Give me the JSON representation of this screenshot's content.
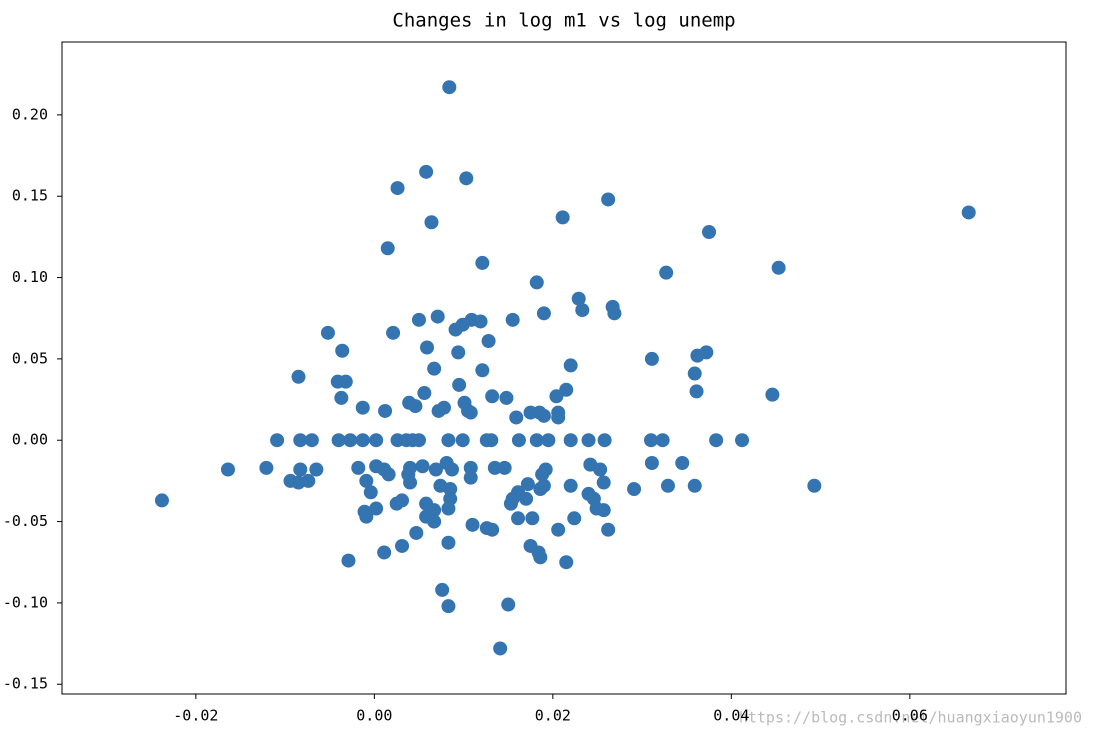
{
  "chart_data": {
    "type": "scatter",
    "title": "Changes in log m1 vs log unemp",
    "color": "#3474b0",
    "watermark": "https://blog.csdn.net/huangxiaoyun1900",
    "xlim": [
      -0.035,
      0.0775
    ],
    "ylim": [
      -0.156,
      0.2448
    ],
    "xticks": [
      {
        "value": -0.02,
        "label": "-0.02"
      },
      {
        "value": 0,
        "label": "0.00"
      },
      {
        "value": 0.02,
        "label": "0.02"
      },
      {
        "value": 0.04,
        "label": "0.04"
      },
      {
        "value": 0.06,
        "label": "0.06"
      }
    ],
    "yticks": [
      {
        "value": -0.15,
        "label": "-0.15"
      },
      {
        "value": -0.1,
        "label": "-0.10"
      },
      {
        "value": -0.05,
        "label": "-0.05"
      },
      {
        "value": 0,
        "label": "0.00"
      },
      {
        "value": 0.05,
        "label": "0.05"
      },
      {
        "value": 0.1,
        "label": "0.10"
      },
      {
        "value": 0.15,
        "label": "0.15"
      },
      {
        "value": 0.2,
        "label": "0.20"
      }
    ],
    "x": [
      0.0084,
      0.0026,
      0.0058,
      0.0103,
      0.0064,
      0.0015,
      0.0121,
      0.0262,
      0.0211,
      0.0375,
      0.0666,
      0.0453,
      0.0327,
      0.0182,
      0.0229,
      0.0233,
      0.0267,
      0.0269,
      0.019,
      0.0155,
      0.005,
      0.0071,
      0.0109,
      0.0119,
      0.0099,
      0.0091,
      -0.0052,
      0.0021,
      0.0128,
      0.0059,
      0.0094,
      -0.0036,
      0.0311,
      0.0372,
      0.0362,
      0.022,
      0.0067,
      0.0121,
      0.0359,
      -0.0085,
      -0.0041,
      -0.0032,
      0.0095,
      0.0215,
      0.0056,
      0.0361,
      0.0446,
      0.0204,
      0.0132,
      0.0148,
      -0.0037,
      0.0039,
      0.0046,
      0.0101,
      -0.0013,
      0.0012,
      0.0072,
      0.0078,
      0.0105,
      0.0108,
      0.0175,
      0.0159,
      0.0185,
      0.019,
      0.0206,
      0.0206,
      -0.0109,
      -0.0083,
      -0.007,
      -0.004,
      -0.0027,
      -0.0013,
      0.0002,
      0.0026,
      0.0036,
      0.0043,
      0.005,
      0.0083,
      0.0099,
      0.0126,
      0.0131,
      0.0162,
      0.0182,
      0.0195,
      0.022,
      0.024,
      0.0258,
      0.031,
      0.0323,
      0.0383,
      0.0412,
      -0.0164,
      -0.0121,
      -0.0238,
      -0.0094,
      -0.0083,
      -0.0085,
      -0.0074,
      -0.0065,
      -0.0018,
      -0.0009,
      -0.0004,
      0.0002,
      0.0011,
      0.0016,
      -0.0011,
      -0.0009,
      0.0002,
      0.0025,
      0.0031,
      0.0038,
      0.004,
      0.004,
      0.0054,
      0.0069,
      0.0081,
      0.0087,
      0.0074,
      0.0085,
      0.0085,
      0.0058,
      0.0067,
      0.0058,
      0.0067,
      0.0083,
      0.0108,
      0.0108,
      0.0135,
      0.0146,
      0.011,
      0.0126,
      0.0132,
      0.0047,
      0.0031,
      0.0011,
      0.0083,
      -0.0029,
      0.0155,
      0.0153,
      0.0161,
      0.0172,
      0.017,
      0.0161,
      0.0177,
      0.0188,
      0.0192,
      0.0186,
      0.019,
      0.0175,
      0.0184,
      0.0186,
      0.0206,
      0.0215,
      0.022,
      0.0224,
      0.024,
      0.0242,
      0.0246,
      0.0249,
      0.0253,
      0.0257,
      0.0257,
      0.0262,
      0.0291,
      0.0311,
      0.0329,
      0.0345,
      0.0359,
      0.0493,
      0.0076,
      0.0083,
      0.015,
      0.0141
    ],
    "values": [
      0.217,
      0.155,
      0.165,
      0.161,
      0.134,
      0.118,
      0.109,
      0.148,
      0.137,
      0.128,
      0.14,
      0.106,
      0.103,
      0.097,
      0.087,
      0.08,
      0.082,
      0.078,
      0.078,
      0.074,
      0.074,
      0.076,
      0.074,
      0.073,
      0.071,
      0.068,
      0.066,
      0.066,
      0.061,
      0.057,
      0.054,
      0.055,
      0.05,
      0.054,
      0.052,
      0.046,
      0.044,
      0.043,
      0.041,
      0.039,
      0.036,
      0.036,
      0.034,
      0.031,
      0.029,
      0.03,
      0.028,
      0.027,
      0.027,
      0.026,
      0.026,
      0.023,
      0.021,
      0.023,
      0.02,
      0.018,
      0.018,
      0.02,
      0.018,
      0.017,
      0.017,
      0.014,
      0.017,
      0.015,
      0.017,
      0.014,
      0,
      0,
      0,
      0,
      0,
      0,
      0,
      0,
      0,
      0,
      0,
      0,
      0,
      0,
      0,
      0,
      0,
      0,
      0,
      0,
      0,
      0,
      0,
      0,
      0,
      -0.018,
      -0.017,
      -0.037,
      -0.025,
      -0.018,
      -0.026,
      -0.025,
      -0.018,
      -0.017,
      -0.025,
      -0.032,
      -0.016,
      -0.018,
      -0.021,
      -0.044,
      -0.047,
      -0.042,
      -0.039,
      -0.037,
      -0.021,
      -0.017,
      -0.026,
      -0.016,
      -0.018,
      -0.014,
      -0.018,
      -0.028,
      -0.03,
      -0.036,
      -0.039,
      -0.043,
      -0.047,
      -0.05,
      -0.042,
      -0.017,
      -0.023,
      -0.017,
      -0.017,
      -0.052,
      -0.054,
      -0.055,
      -0.057,
      -0.065,
      -0.069,
      -0.063,
      -0.074,
      -0.036,
      -0.039,
      -0.032,
      -0.027,
      -0.036,
      -0.048,
      -0.048,
      -0.021,
      -0.018,
      -0.03,
      -0.028,
      -0.065,
      -0.069,
      -0.072,
      -0.055,
      -0.075,
      -0.028,
      -0.048,
      -0.033,
      -0.015,
      -0.036,
      -0.042,
      -0.018,
      -0.026,
      -0.043,
      -0.055,
      -0.03,
      -0.014,
      -0.028,
      -0.014,
      -0.028,
      -0.028,
      -0.092,
      -0.102,
      -0.101,
      -0.128
    ]
  }
}
